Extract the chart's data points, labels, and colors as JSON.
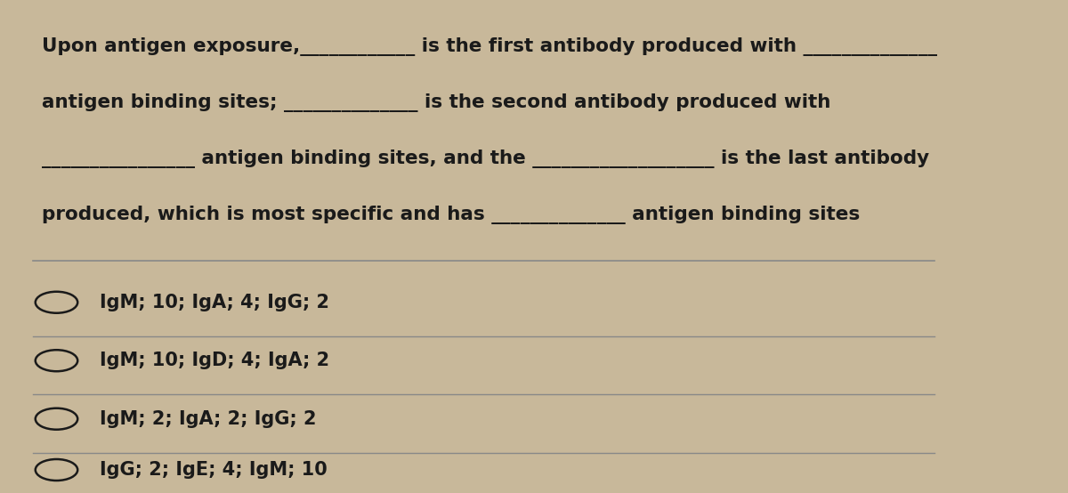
{
  "bg_color": "#c8b89a",
  "text_color": "#1a1a1a",
  "line_color": "#888888",
  "question_lines": [
    "Upon antigen exposure,____________ is the first antibody produced with ______________",
    "antigen binding sites; ______________ is the second antibody produced with",
    "________________ antigen binding sites, and the ___________________ is the last antibody",
    "produced, which is most specific and has ______________ antigen binding sites"
  ],
  "options": [
    "IgM; 10; IgA; 4; IgG; 2",
    "IgM; 10; IgD; 4; IgA; 2",
    "IgM; 2; IgA; 2; IgG; 2",
    "IgG; 2; IgE; 4; IgM; 10"
  ],
  "font_size_question": 15.5,
  "font_size_options": 15.0,
  "figsize": [
    12.0,
    5.54
  ],
  "dpi": 100
}
